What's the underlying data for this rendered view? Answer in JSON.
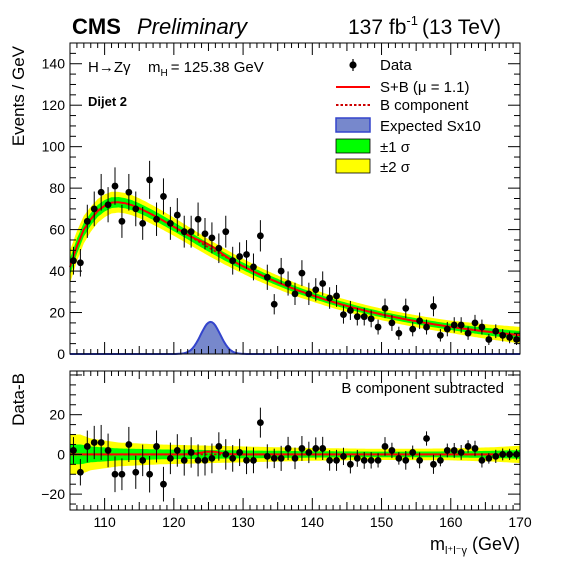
{
  "chart_data": {
    "type": "scatter",
    "header": {
      "experiment": "CMS",
      "status": "Preliminary",
      "lumi_value": "137 fb",
      "lumi_exp": "-1",
      "energy": "(13 TeV)"
    },
    "annotations": {
      "process": "H→Zγ",
      "mass_pre": "m",
      "mass_sub": "H",
      "mass_value": "= 125.38 GeV",
      "category": "Dijet 2",
      "lower_note": "B component subtracted"
    },
    "xlabel": {
      "main": "m",
      "sub": "l⁺l⁻γ",
      "unit": "(GeV)"
    },
    "ylabel_upper": "Events / GeV",
    "ylabel_lower": "Data-B",
    "xlim": [
      105,
      170
    ],
    "ylim_upper": [
      0,
      150
    ],
    "ylim_lower": [
      -28,
      42
    ],
    "xticks": [
      110,
      120,
      130,
      140,
      150,
      160,
      170
    ],
    "yticks_upper": [
      0,
      20,
      40,
      60,
      80,
      100,
      120,
      140
    ],
    "yticks_lower": [
      -20,
      0,
      20
    ],
    "legend": {
      "position": "top-right",
      "entries": [
        {
          "key": "data",
          "label": "Data"
        },
        {
          "key": "sb",
          "label": "S+B (μ = 1.1)"
        },
        {
          "key": "bcomp",
          "label": "B component"
        },
        {
          "key": "sig",
          "label": "Expected Sx10"
        },
        {
          "key": "b1",
          "label": "±1 σ"
        },
        {
          "key": "b2",
          "label": "±2 σ"
        }
      ]
    },
    "colors": {
      "sb": "#ff0000",
      "bcomp": "#cc0000",
      "signal_fill": "#7788cc",
      "signal_line": "#3344cc",
      "band1": "#00ff00",
      "band2": "#ffff00",
      "data": "#000000"
    },
    "data_points": [
      {
        "x": 105.5,
        "y": 45
      },
      {
        "x": 106.5,
        "y": 44
      },
      {
        "x": 107.5,
        "y": 64
      },
      {
        "x": 108.5,
        "y": 70
      },
      {
        "x": 109.5,
        "y": 78
      },
      {
        "x": 110.5,
        "y": 72
      },
      {
        "x": 111.5,
        "y": 81
      },
      {
        "x": 112.5,
        "y": 64
      },
      {
        "x": 113.5,
        "y": 78
      },
      {
        "x": 114.5,
        "y": 70
      },
      {
        "x": 115.5,
        "y": 63
      },
      {
        "x": 116.5,
        "y": 84
      },
      {
        "x": 117.5,
        "y": 65
      },
      {
        "x": 118.5,
        "y": 76
      },
      {
        "x": 119.5,
        "y": 63
      },
      {
        "x": 120.5,
        "y": 67
      },
      {
        "x": 121.5,
        "y": 59
      },
      {
        "x": 122.5,
        "y": 59
      },
      {
        "x": 123.5,
        "y": 65
      },
      {
        "x": 124.5,
        "y": 58
      },
      {
        "x": 125.5,
        "y": 56
      },
      {
        "x": 126.5,
        "y": 51
      },
      {
        "x": 127.5,
        "y": 59
      },
      {
        "x": 128.5,
        "y": 45
      },
      {
        "x": 129.5,
        "y": 47
      },
      {
        "x": 130.5,
        "y": 48
      },
      {
        "x": 131.5,
        "y": 42
      },
      {
        "x": 132.5,
        "y": 57
      },
      {
        "x": 133.5,
        "y": 37
      },
      {
        "x": 134.5,
        "y": 24
      },
      {
        "x": 135.5,
        "y": 40
      },
      {
        "x": 136.5,
        "y": 34
      },
      {
        "x": 137.5,
        "y": 29
      },
      {
        "x": 138.5,
        "y": 39
      },
      {
        "x": 139.5,
        "y": 29
      },
      {
        "x": 140.5,
        "y": 31
      },
      {
        "x": 141.5,
        "y": 34
      },
      {
        "x": 142.5,
        "y": 27
      },
      {
        "x": 143.5,
        "y": 28
      },
      {
        "x": 144.5,
        "y": 19
      },
      {
        "x": 145.5,
        "y": 21
      },
      {
        "x": 146.5,
        "y": 18
      },
      {
        "x": 147.5,
        "y": 18
      },
      {
        "x": 148.5,
        "y": 17
      },
      {
        "x": 149.5,
        "y": 13
      },
      {
        "x": 150.5,
        "y": 22
      },
      {
        "x": 151.5,
        "y": 15
      },
      {
        "x": 152.5,
        "y": 10
      },
      {
        "x": 153.5,
        "y": 22
      },
      {
        "x": 154.5,
        "y": 12
      },
      {
        "x": 155.5,
        "y": 16
      },
      {
        "x": 156.5,
        "y": 13
      },
      {
        "x": 157.5,
        "y": 23
      },
      {
        "x": 158.5,
        "y": 9
      },
      {
        "x": 159.5,
        "y": 12
      },
      {
        "x": 160.5,
        "y": 14
      },
      {
        "x": 161.5,
        "y": 14
      },
      {
        "x": 162.5,
        "y": 10
      },
      {
        "x": 163.5,
        "y": 15
      },
      {
        "x": 164.5,
        "y": 13
      },
      {
        "x": 165.5,
        "y": 7
      },
      {
        "x": 166.5,
        "y": 11
      },
      {
        "x": 167.5,
        "y": 9
      },
      {
        "x": 168.5,
        "y": 8
      },
      {
        "x": 169.5,
        "y": 7
      }
    ],
    "background_fit": [
      {
        "x": 105,
        "y": 42
      },
      {
        "x": 106,
        "y": 52
      },
      {
        "x": 107,
        "y": 60
      },
      {
        "x": 108,
        "y": 65
      },
      {
        "x": 109,
        "y": 69
      },
      {
        "x": 110,
        "y": 71.5
      },
      {
        "x": 111,
        "y": 73
      },
      {
        "x": 112,
        "y": 73.2
      },
      {
        "x": 113,
        "y": 72.7
      },
      {
        "x": 114,
        "y": 71.7
      },
      {
        "x": 115,
        "y": 70.3
      },
      {
        "x": 116,
        "y": 68.7
      },
      {
        "x": 117,
        "y": 67
      },
      {
        "x": 118,
        "y": 65.2
      },
      {
        "x": 119,
        "y": 63.3
      },
      {
        "x": 120,
        "y": 61.4
      },
      {
        "x": 121,
        "y": 59.4
      },
      {
        "x": 122,
        "y": 57.4
      },
      {
        "x": 123,
        "y": 55.4
      },
      {
        "x": 124,
        "y": 53.4
      },
      {
        "x": 125,
        "y": 51.4
      },
      {
        "x": 126,
        "y": 49.5
      },
      {
        "x": 127,
        "y": 47.6
      },
      {
        "x": 128,
        "y": 45.8
      },
      {
        "x": 129,
        "y": 44
      },
      {
        "x": 130,
        "y": 42.3
      },
      {
        "x": 132,
        "y": 39
      },
      {
        "x": 134,
        "y": 36
      },
      {
        "x": 136,
        "y": 33.2
      },
      {
        "x": 138,
        "y": 30.6
      },
      {
        "x": 140,
        "y": 28.3
      },
      {
        "x": 142,
        "y": 26.1
      },
      {
        "x": 144,
        "y": 24.1
      },
      {
        "x": 146,
        "y": 22.3
      },
      {
        "x": 148,
        "y": 20.6
      },
      {
        "x": 150,
        "y": 19.1
      },
      {
        "x": 152,
        "y": 17.7
      },
      {
        "x": 154,
        "y": 16.4
      },
      {
        "x": 156,
        "y": 15.2
      },
      {
        "x": 158,
        "y": 14.1
      },
      {
        "x": 160,
        "y": 13.1
      },
      {
        "x": 162,
        "y": 12.2
      },
      {
        "x": 164,
        "y": 11.3
      },
      {
        "x": 166,
        "y": 10.5
      },
      {
        "x": 168,
        "y": 9.8
      },
      {
        "x": 170,
        "y": 9.1
      }
    ],
    "band1_halfwidth_upper": [
      {
        "x": 105,
        "y": 4
      },
      {
        "x": 108,
        "y": 3
      },
      {
        "x": 112,
        "y": 2.5
      },
      {
        "x": 120,
        "y": 2.2
      },
      {
        "x": 130,
        "y": 1.8
      },
      {
        "x": 140,
        "y": 1.5
      },
      {
        "x": 150,
        "y": 1.4
      },
      {
        "x": 160,
        "y": 1.5
      },
      {
        "x": 170,
        "y": 2
      }
    ],
    "band2_halfwidth_upper": [
      {
        "x": 105,
        "y": 8
      },
      {
        "x": 108,
        "y": 6
      },
      {
        "x": 112,
        "y": 5
      },
      {
        "x": 120,
        "y": 4.4
      },
      {
        "x": 130,
        "y": 3.6
      },
      {
        "x": 140,
        "y": 3
      },
      {
        "x": 150,
        "y": 2.8
      },
      {
        "x": 160,
        "y": 3
      },
      {
        "x": 170,
        "y": 4
      }
    ],
    "band1_halfwidth_lower": [
      {
        "x": 105,
        "y": 5
      },
      {
        "x": 106.5,
        "y": 5
      },
      {
        "x": 108,
        "y": 4
      },
      {
        "x": 112,
        "y": 3
      },
      {
        "x": 118,
        "y": 2.5
      },
      {
        "x": 125,
        "y": 2.2
      },
      {
        "x": 130,
        "y": 2
      },
      {
        "x": 140,
        "y": 1.6
      },
      {
        "x": 150,
        "y": 1.4
      },
      {
        "x": 160,
        "y": 1.5
      },
      {
        "x": 166,
        "y": 1.8
      },
      {
        "x": 170,
        "y": 2.2
      }
    ],
    "band2_halfwidth_lower": [
      {
        "x": 105,
        "y": 10
      },
      {
        "x": 106.5,
        "y": 10
      },
      {
        "x": 108,
        "y": 8
      },
      {
        "x": 112,
        "y": 6
      },
      {
        "x": 118,
        "y": 5
      },
      {
        "x": 125,
        "y": 4.4
      },
      {
        "x": 130,
        "y": 4
      },
      {
        "x": 140,
        "y": 3.2
      },
      {
        "x": 150,
        "y": 2.8
      },
      {
        "x": 160,
        "y": 3
      },
      {
        "x": 166,
        "y": 3.6
      },
      {
        "x": 170,
        "y": 4.4
      }
    ],
    "signal_peak": {
      "mean": 125.3,
      "sigma": 1.4,
      "amplitude": 15.5
    },
    "signal_residual_amplitude": 1.4,
    "residual_points": [
      {
        "x": 105.5,
        "y": 2
      },
      {
        "x": 106.5,
        "y": -9
      },
      {
        "x": 107.5,
        "y": 4
      },
      {
        "x": 108.5,
        "y": 6
      },
      {
        "x": 109.5,
        "y": 6
      },
      {
        "x": 110.5,
        "y": 2
      },
      {
        "x": 111.5,
        "y": -10
      },
      {
        "x": 112.5,
        "y": -10
      },
      {
        "x": 113.5,
        "y": 5
      },
      {
        "x": 114.5,
        "y": -9
      },
      {
        "x": 115.5,
        "y": -3
      },
      {
        "x": 116.5,
        "y": -10
      },
      {
        "x": 117.5,
        "y": 4
      },
      {
        "x": 118.5,
        "y": -15
      },
      {
        "x": 119.5,
        "y": -2
      },
      {
        "x": 120.5,
        "y": 2
      },
      {
        "x": 121.5,
        "y": -3
      },
      {
        "x": 122.5,
        "y": 1
      },
      {
        "x": 123.5,
        "y": -3
      },
      {
        "x": 124.5,
        "y": -3
      },
      {
        "x": 125.5,
        "y": -2
      },
      {
        "x": 126.5,
        "y": 4
      },
      {
        "x": 127.5,
        "y": 0
      },
      {
        "x": 128.5,
        "y": -2
      },
      {
        "x": 129.5,
        "y": 1
      },
      {
        "x": 130.5,
        "y": -3
      },
      {
        "x": 131.5,
        "y": -3
      },
      {
        "x": 132.5,
        "y": 16
      },
      {
        "x": 133.5,
        "y": -1
      },
      {
        "x": 134.5,
        "y": -2
      },
      {
        "x": 135.5,
        "y": -2
      },
      {
        "x": 136.5,
        "y": 3
      },
      {
        "x": 137.5,
        "y": -2
      },
      {
        "x": 138.5,
        "y": 3
      },
      {
        "x": 139.5,
        "y": 1
      },
      {
        "x": 140.5,
        "y": 3
      },
      {
        "x": 141.5,
        "y": 3
      },
      {
        "x": 142.5,
        "y": -3
      },
      {
        "x": 143.5,
        "y": -3
      },
      {
        "x": 144.5,
        "y": -1
      },
      {
        "x": 145.5,
        "y": -5
      },
      {
        "x": 146.5,
        "y": -2
      },
      {
        "x": 147.5,
        "y": -3
      },
      {
        "x": 148.5,
        "y": -3
      },
      {
        "x": 149.5,
        "y": -3
      },
      {
        "x": 150.5,
        "y": 4
      },
      {
        "x": 151.5,
        "y": 2
      },
      {
        "x": 152.5,
        "y": -2
      },
      {
        "x": 153.5,
        "y": -3
      },
      {
        "x": 154.5,
        "y": 1
      },
      {
        "x": 155.5,
        "y": -3
      },
      {
        "x": 156.5,
        "y": 8
      },
      {
        "x": 157.5,
        "y": -5
      },
      {
        "x": 158.5,
        "y": -3
      },
      {
        "x": 159.5,
        "y": 2
      },
      {
        "x": 160.5,
        "y": 2
      },
      {
        "x": 161.5,
        "y": 1
      },
      {
        "x": 162.5,
        "y": 4
      },
      {
        "x": 163.5,
        "y": 3
      },
      {
        "x": 164.5,
        "y": -3
      },
      {
        "x": 165.5,
        "y": -2
      },
      {
        "x": 166.5,
        "y": -1
      },
      {
        "x": 167.5,
        "y": 0
      },
      {
        "x": 168.5,
        "y": 0
      },
      {
        "x": 169.5,
        "y": 0
      }
    ]
  }
}
